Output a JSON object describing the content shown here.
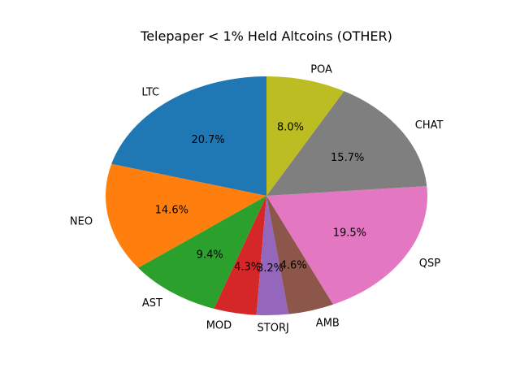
{
  "chart_data": {
    "type": "pie",
    "title": "Telepaper < 1% Held Altcoins (OTHER)",
    "start_angle_deg": 90,
    "direction": "counterclockwise",
    "slices": [
      {
        "label": "LTC",
        "value": 20.7,
        "pct_label": "20.7%",
        "color": "#1f77b4"
      },
      {
        "label": "NEO",
        "value": 14.6,
        "pct_label": "14.6%",
        "color": "#ff7f0e"
      },
      {
        "label": "AST",
        "value": 9.4,
        "pct_label": "9.4%",
        "color": "#2ca02c"
      },
      {
        "label": "MOD",
        "value": 4.3,
        "pct_label": "4.3%",
        "color": "#d62728"
      },
      {
        "label": "STORJ",
        "value": 3.2,
        "pct_label": "3.2%",
        "color": "#9467bd"
      },
      {
        "label": "AMB",
        "value": 4.6,
        "pct_label": "4.6%",
        "color": "#8c564b"
      },
      {
        "label": "QSP",
        "value": 19.5,
        "pct_label": "19.5%",
        "color": "#e377c2"
      },
      {
        "label": "CHAT",
        "value": 15.7,
        "pct_label": "15.7%",
        "color": "#7f7f7f"
      },
      {
        "label": "POA",
        "value": 8.0,
        "pct_label": "8.0%",
        "color": "#bcbd22"
      }
    ]
  }
}
